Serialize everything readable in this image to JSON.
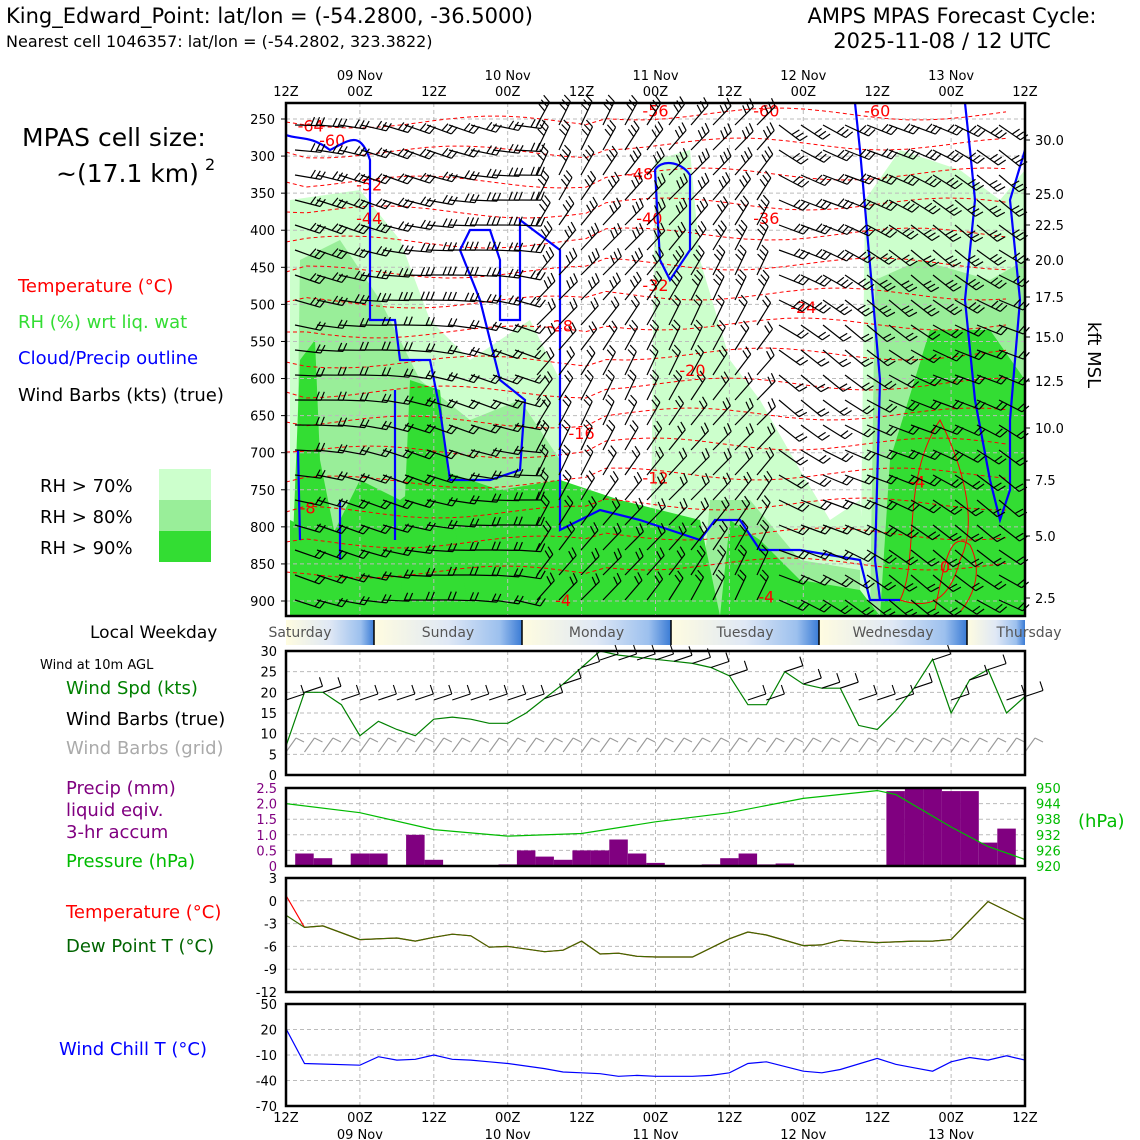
{
  "header": {
    "title": "King_Edward_Point: lat/lon = (-54.2800, -36.5000)",
    "subtitle": "Nearest cell 1046357: lat/lon = (-54.2802, 323.3822)",
    "forecast_title": "AMPS MPAS Forecast Cycle:",
    "forecast_cycle": "2025-11-08 / 12 UTC"
  },
  "sidebar": {
    "cell_size_title": "MPAS cell size:",
    "cell_size_value": "~(17.1 km)",
    "cell_size_exp": "2",
    "legend": [
      {
        "label": "Temperature (°C)",
        "color": "#ff0000"
      },
      {
        "label": "RH (%) wrt liq. wat",
        "color": "#33dd33"
      },
      {
        "label": "Cloud/Precip outline",
        "color": "#0000ff"
      },
      {
        "label": "Wind Barbs (kts) (true)",
        "color": "#000000"
      }
    ],
    "rh_legend": [
      {
        "label": "RH > 70%",
        "color": "#ccffcc"
      },
      {
        "label": "RH > 80%",
        "color": "#99ee99"
      },
      {
        "label": "RH > 90%",
        "color": "#33dd33"
      }
    ],
    "weekday_label": "Local Weekday",
    "wind_10m_label": "Wind at 10m AGL",
    "wind_legend": [
      {
        "label": "Wind Spd (kts)",
        "color": "#008000"
      },
      {
        "label": "Wind Barbs (true)",
        "color": "#000000"
      },
      {
        "label": "Wind Barbs (grid)",
        "color": "#aaaaaa"
      }
    ],
    "precip_legend": [
      {
        "label": "Precip (mm)",
        "color": "#800080"
      },
      {
        "label": "liquid eqiv.",
        "color": "#800080"
      },
      {
        "label": "3-hr accum",
        "color": "#800080"
      },
      {
        "label": "Pressure (hPa)",
        "color": "#00bb00"
      }
    ],
    "temp_legend": [
      {
        "label": "Temperature (°C)",
        "color": "#ff0000"
      },
      {
        "label": "Dew Point T (°C)",
        "color": "#006400"
      }
    ],
    "windchill_label": "Wind Chill T (°C)",
    "windchill_color": "#0000ff"
  },
  "time_axis": {
    "top_hours": [
      "12Z",
      "00Z",
      "12Z",
      "00Z",
      "12Z",
      "00Z",
      "12Z",
      "00Z",
      "12Z",
      "00Z",
      "12Z"
    ],
    "dates": [
      "09 Nov",
      "10 Nov",
      "11 Nov",
      "12 Nov",
      "13 Nov"
    ],
    "weekdays": [
      "Saturday",
      "Sunday",
      "Monday",
      "Tuesday",
      "Wednesday",
      "Thursday"
    ]
  },
  "chart_data": [
    {
      "type": "heatmap",
      "name": "vertical-profile",
      "y_label_right": "kft MSL",
      "pressure_ticks_hpa": [
        250,
        300,
        350,
        400,
        450,
        500,
        550,
        600,
        650,
        700,
        750,
        800,
        850,
        900
      ],
      "height_ticks_kft": [
        "30.0",
        "25.0",
        "22.5",
        "20.0",
        "17.5",
        "15.0",
        "12.5",
        "10.0",
        "7.5",
        "5.0",
        "2.5"
      ],
      "x_hours_from_start": [
        0,
        120
      ],
      "temperature_contour_labels": [
        {
          "label": "-64",
          "hour": 4,
          "p": 260
        },
        {
          "label": "-60",
          "hour": 7.5,
          "p": 280
        },
        {
          "label": "-52",
          "hour": 13.5,
          "p": 340
        },
        {
          "label": "-44",
          "hour": 13.5,
          "p": 385
        },
        {
          "label": "-56",
          "hour": 60,
          "p": 240
        },
        {
          "label": "-48",
          "hour": 57.5,
          "p": 325
        },
        {
          "label": "-40",
          "hour": 59,
          "p": 385
        },
        {
          "label": "-32",
          "hour": 60,
          "p": 475
        },
        {
          "label": "-60",
          "hour": 78,
          "p": 240
        },
        {
          "label": "-60",
          "hour": 96,
          "p": 240
        },
        {
          "label": "-36",
          "hour": 78,
          "p": 385
        },
        {
          "label": "-24",
          "hour": 84,
          "p": 505
        },
        {
          "label": "-28",
          "hour": 44.5,
          "p": 530
        },
        {
          "label": "-20",
          "hour": 66,
          "p": 590
        },
        {
          "label": "-16",
          "hour": 48,
          "p": 675
        },
        {
          "label": "-12",
          "hour": 60,
          "p": 735
        },
        {
          "label": "-8",
          "hour": 3.5,
          "p": 775
        },
        {
          "label": "-4",
          "hour": 45,
          "p": 900
        },
        {
          "label": "-4",
          "hour": 78,
          "p": 895
        },
        {
          "label": "-4",
          "hour": 102.5,
          "p": 740
        },
        {
          "label": "0",
          "hour": 107,
          "p": 855
        }
      ]
    },
    {
      "type": "line",
      "name": "wind-10m",
      "ylim": [
        0,
        30
      ],
      "yticks": [
        0,
        5,
        10,
        15,
        20,
        25,
        30
      ],
      "x_hours": [
        0,
        3,
        6,
        9,
        12,
        15,
        18,
        21,
        24,
        27,
        30,
        33,
        36,
        39,
        42,
        45,
        48,
        51,
        54,
        57,
        60,
        63,
        66,
        69,
        72,
        75,
        78,
        81,
        84,
        87,
        90,
        93,
        96,
        99,
        102,
        105,
        108,
        111,
        114,
        117,
        120
      ],
      "series": [
        {
          "values": [
            7,
            20,
            20,
            17,
            9.5,
            13,
            11,
            9.5,
            13.5,
            14,
            13.5,
            12.5,
            12.5,
            15,
            18.5,
            22,
            26,
            30,
            29,
            28.5,
            28,
            27.5,
            27,
            26,
            24,
            17,
            17,
            25,
            22,
            21,
            21,
            12,
            11,
            15.5,
            21,
            28,
            15,
            23,
            25.5,
            15,
            19
          ]
        }
      ]
    },
    {
      "type": "bar",
      "name": "precip-pressure",
      "ylim": [
        0,
        2.5
      ],
      "yticks": [
        "0",
        "0.5",
        "1.0",
        "1.5",
        "2.0",
        "2.5"
      ],
      "y2ticks": [
        "920",
        "926",
        "932",
        "938",
        "944",
        "950"
      ],
      "y2_label": "(hPa)",
      "x_hours": [
        3,
        6,
        12,
        15,
        21,
        24,
        36,
        39,
        42,
        45,
        48,
        51,
        54,
        57,
        60,
        63,
        69,
        72,
        75,
        78,
        81,
        99,
        102,
        105,
        108,
        111,
        114,
        117
      ],
      "values": [
        0.4,
        0.25,
        0.4,
        0.4,
        1.0,
        0.2,
        0.05,
        0.5,
        0.3,
        0.2,
        0.5,
        0.5,
        0.85,
        0.4,
        0.1,
        0.02,
        0.05,
        0.25,
        0.4,
        0.05,
        0.08,
        2.4,
        2.5,
        2.5,
        2.4,
        2.4,
        0.75,
        1.2
      ],
      "pressure_x_hours": [
        0,
        12,
        24,
        36,
        48,
        60,
        72,
        84,
        96,
        99,
        108,
        114,
        120
      ],
      "pressure_hpa": [
        944,
        940.5,
        934,
        931.5,
        932.5,
        937,
        940.5,
        946,
        949,
        947.5,
        935,
        927.5,
        922.5
      ]
    },
    {
      "type": "line",
      "name": "temp-dewpoint",
      "ylim": [
        -12,
        3
      ],
      "yticks": [
        3,
        0,
        -3,
        -6,
        -9,
        -12
      ],
      "x_hours": [
        0,
        3,
        6,
        12,
        18,
        21,
        24,
        27,
        30,
        33,
        36,
        42,
        45,
        48,
        51,
        54,
        57,
        60,
        63,
        66,
        72,
        75,
        78,
        84,
        87,
        90,
        96,
        102,
        105,
        108,
        114,
        120
      ],
      "series": [
        {
          "name": "Temperature",
          "values": [
            0.7,
            -3.5,
            -3.3,
            -5.1,
            -4.9,
            -5.3,
            -4.8,
            -4.4,
            -4.6,
            -6.1,
            -6.0,
            -6.7,
            -6.5,
            -5.3,
            -7.0,
            -6.9,
            -7.3,
            -7.4,
            -7.4,
            -7.4,
            -5.0,
            -4.1,
            -4.5,
            -5.9,
            -5.8,
            -5.2,
            -5.5,
            -5.3,
            -5.3,
            -5.1,
            -0.1,
            -2.5
          ]
        },
        {
          "name": "Dew Point",
          "values": [
            -1.9,
            -3.5,
            -3.3,
            -5.1,
            -4.9,
            -5.3,
            -4.8,
            -4.4,
            -4.6,
            -6.1,
            -6.0,
            -6.7,
            -6.5,
            -5.3,
            -7.0,
            -6.9,
            -7.3,
            -7.4,
            -7.4,
            -7.4,
            -5.0,
            -4.1,
            -4.5,
            -5.9,
            -5.8,
            -5.2,
            -5.5,
            -5.3,
            -5.3,
            -5.1,
            -0.1,
            -2.5
          ]
        }
      ]
    },
    {
      "type": "line",
      "name": "wind-chill",
      "ylim": [
        -70,
        50
      ],
      "yticks": [
        50,
        20,
        -10,
        -40,
        -70
      ],
      "x_hours": [
        0,
        3,
        12,
        15,
        18,
        21,
        24,
        27,
        30,
        33,
        36,
        42,
        45,
        48,
        51,
        54,
        57,
        60,
        63,
        66,
        69,
        72,
        75,
        78,
        84,
        87,
        90,
        96,
        99,
        102,
        105,
        108,
        111,
        114,
        117,
        120
      ],
      "series": [
        {
          "values": [
            21,
            -20,
            -22,
            -12,
            -16,
            -15,
            -10,
            -15,
            -16,
            -18,
            -20,
            -26,
            -30,
            -31,
            -32,
            -35,
            -34,
            -35,
            -35,
            -35,
            -34,
            -31,
            -20,
            -18,
            -29,
            -31,
            -27,
            -14,
            -21,
            -25,
            -29,
            -18,
            -13,
            -16,
            -11,
            -16
          ]
        }
      ]
    }
  ]
}
